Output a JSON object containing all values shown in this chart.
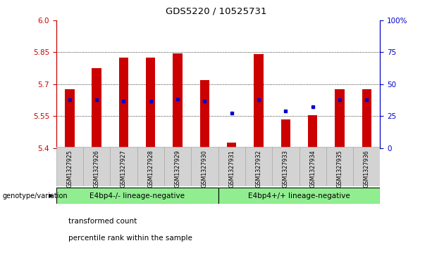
{
  "title": "GDS5220 / 10525731",
  "samples": [
    "GSM1327925",
    "GSM1327926",
    "GSM1327927",
    "GSM1327928",
    "GSM1327929",
    "GSM1327930",
    "GSM1327931",
    "GSM1327932",
    "GSM1327933",
    "GSM1327934",
    "GSM1327935",
    "GSM1327936"
  ],
  "bar_tops": [
    5.675,
    5.775,
    5.825,
    5.825,
    5.845,
    5.72,
    5.425,
    5.84,
    5.535,
    5.555,
    5.675,
    5.675
  ],
  "blue_y": [
    5.625,
    5.625,
    5.62,
    5.62,
    5.63,
    5.62,
    5.565,
    5.625,
    5.575,
    5.595,
    5.625,
    5.625
  ],
  "bar_bottom": 5.4,
  "ylim_left": [
    5.4,
    6.0
  ],
  "yticks_left": [
    5.4,
    5.55,
    5.7,
    5.85,
    6.0
  ],
  "yticks_right_vals": [
    0,
    25,
    50,
    75,
    100
  ],
  "yticks_right_labels": [
    "0",
    "25",
    "50",
    "75",
    "100%"
  ],
  "grid_lines": [
    5.55,
    5.7,
    5.85
  ],
  "groups": [
    {
      "label": "E4bp4-/- lineage-negative",
      "start": 0,
      "end": 6,
      "color": "#90ee90"
    },
    {
      "label": "E4bp4+/+ lineage-negative",
      "start": 6,
      "end": 12,
      "color": "#90ee90"
    }
  ],
  "group_row_label": "genotype/variation",
  "legend_items": [
    {
      "color": "#cc0000",
      "label": "transformed count"
    },
    {
      "color": "#0000cc",
      "label": "percentile rank within the sample"
    }
  ],
  "bar_color": "#cc0000",
  "blue_color": "#0000cc",
  "left_axis_color": "#cc0000",
  "right_axis_color": "#0000cc",
  "bg_plot": "#ffffff",
  "bg_xticklabels": "#d3d3d3",
  "bar_width": 0.35
}
